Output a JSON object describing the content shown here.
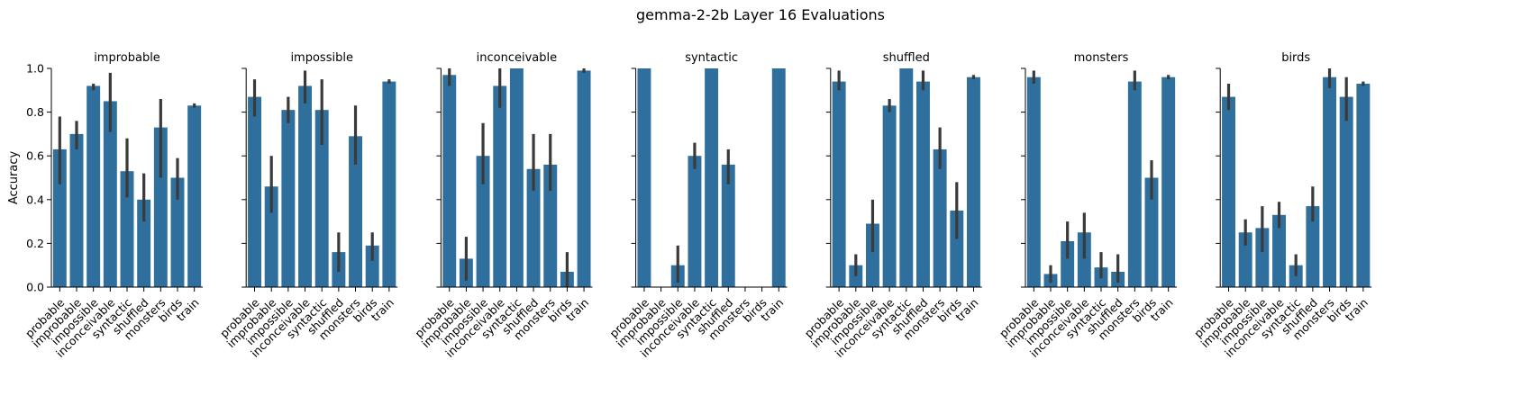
{
  "chart_data": {
    "type": "bar",
    "title": "gemma-2-2b Layer 16 Evaluations",
    "ylabel": "Accuracy",
    "xlabel": "",
    "ylim": [
      0,
      1.0
    ],
    "yticks": [
      0.0,
      0.2,
      0.4,
      0.6,
      0.8,
      1.0
    ],
    "ytick_labels": [
      "0.0",
      "0.2",
      "0.4",
      "0.6",
      "0.8",
      "1.0"
    ],
    "color": "#2e6f9e",
    "errorbar_color": "#3a3a3a",
    "categories": [
      "probable",
      "improbable",
      "impossible",
      "inconceivable",
      "syntactic",
      "shuffled",
      "monsters",
      "birds",
      "train"
    ],
    "panels": [
      {
        "title": "improbable",
        "values": [
          0.63,
          0.7,
          0.92,
          0.85,
          0.53,
          0.4,
          0.73,
          0.5,
          0.83
        ],
        "err_low": [
          0.47,
          0.63,
          0.9,
          0.71,
          0.41,
          0.3,
          0.5,
          0.4,
          0.82
        ],
        "err_high": [
          0.78,
          0.76,
          0.93,
          0.98,
          0.68,
          0.52,
          0.86,
          0.59,
          0.84
        ]
      },
      {
        "title": "impossible",
        "values": [
          0.87,
          0.46,
          0.81,
          0.92,
          0.81,
          0.16,
          0.69,
          0.19,
          0.94
        ],
        "err_low": [
          0.78,
          0.34,
          0.75,
          0.84,
          0.65,
          0.07,
          0.56,
          0.12,
          0.93
        ],
        "err_high": [
          0.95,
          0.6,
          0.87,
          0.99,
          0.95,
          0.25,
          0.83,
          0.25,
          0.95
        ]
      },
      {
        "title": "inconceivable",
        "values": [
          0.97,
          0.13,
          0.6,
          0.92,
          1.0,
          0.54,
          0.56,
          0.07,
          0.99
        ],
        "err_low": [
          0.92,
          0.03,
          0.47,
          0.82,
          1.0,
          0.44,
          0.44,
          0.0,
          0.98
        ],
        "err_high": [
          1.0,
          0.23,
          0.75,
          1.0,
          1.0,
          0.7,
          0.7,
          0.16,
          1.0
        ]
      },
      {
        "title": "syntactic",
        "values": [
          1.0,
          0.0,
          0.1,
          0.6,
          1.0,
          0.56,
          0.0,
          0.0,
          1.0
        ],
        "err_low": [
          1.0,
          0.0,
          0.02,
          0.54,
          1.0,
          0.47,
          0.0,
          0.0,
          1.0
        ],
        "err_high": [
          1.0,
          0.0,
          0.19,
          0.66,
          1.0,
          0.63,
          0.0,
          0.0,
          1.0
        ]
      },
      {
        "title": "shuffled",
        "values": [
          0.94,
          0.1,
          0.29,
          0.83,
          1.0,
          0.94,
          0.63,
          0.35,
          0.96
        ],
        "err_low": [
          0.9,
          0.05,
          0.16,
          0.8,
          1.0,
          0.9,
          0.54,
          0.22,
          0.95
        ],
        "err_high": [
          0.99,
          0.15,
          0.4,
          0.86,
          1.0,
          0.99,
          0.73,
          0.48,
          0.97
        ]
      },
      {
        "title": "monsters",
        "values": [
          0.96,
          0.06,
          0.21,
          0.25,
          0.09,
          0.07,
          0.94,
          0.5,
          0.96
        ],
        "err_low": [
          0.93,
          0.02,
          0.13,
          0.13,
          0.04,
          0.02,
          0.9,
          0.4,
          0.95
        ],
        "err_high": [
          0.99,
          0.1,
          0.3,
          0.34,
          0.16,
          0.15,
          0.99,
          0.58,
          0.97
        ]
      },
      {
        "title": "birds",
        "values": [
          0.87,
          0.25,
          0.27,
          0.33,
          0.1,
          0.37,
          0.96,
          0.87,
          0.93
        ],
        "err_low": [
          0.81,
          0.19,
          0.16,
          0.27,
          0.05,
          0.3,
          0.91,
          0.76,
          0.92
        ],
        "err_high": [
          0.93,
          0.31,
          0.37,
          0.39,
          0.15,
          0.46,
          1.0,
          0.96,
          0.94
        ]
      }
    ]
  }
}
